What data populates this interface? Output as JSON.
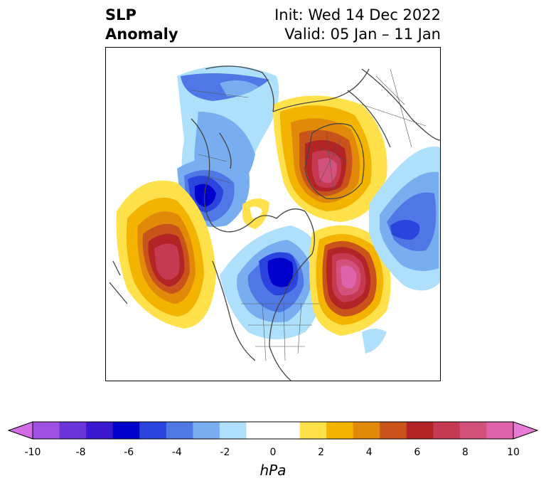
{
  "title": {
    "left_line1": "SLP",
    "left_line2": "Anomaly",
    "right_line1": "Init: Wed 14 Dec 2022",
    "right_line2": "Valid: 05 Jan – 11 Jan"
  },
  "colorbar": {
    "units": "hPa",
    "tick_labels": [
      "-10",
      "-8",
      "-6",
      "-4",
      "-2",
      "0",
      "2",
      "4",
      "6",
      "8",
      "10"
    ],
    "low_extend_color": "#d36be6",
    "high_extend_color": "#e87ad8",
    "colors": [
      "#a050e0",
      "#6a35d8",
      "#3a18d0",
      "#0000cc",
      "#2a44dd",
      "#4f78e6",
      "#78aef0",
      "#aee0fb",
      "#ffffff",
      "#ffffff",
      "#ffe14b",
      "#f2b400",
      "#e18a09",
      "#c8541b",
      "#b22426",
      "#c53a52",
      "#d2527c",
      "#de63aa"
    ]
  },
  "map": {
    "projection": "north-polar-stereographic",
    "field": "SLP anomaly"
  }
}
